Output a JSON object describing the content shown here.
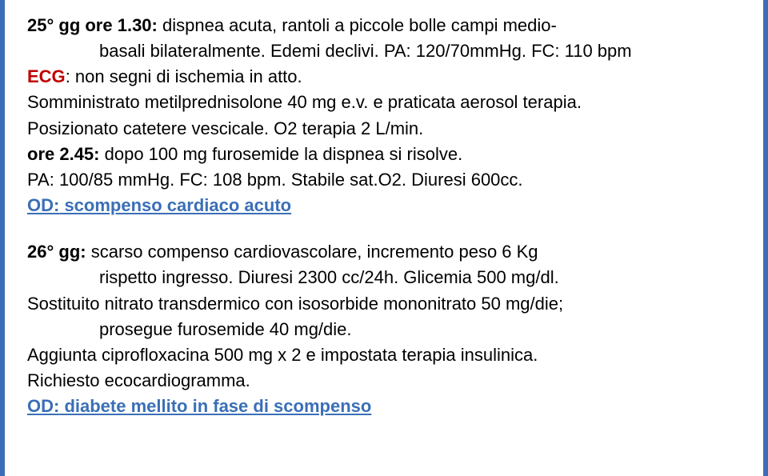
{
  "text_color": "#000000",
  "accent_color": "#3a6fb7",
  "red_color": "#c00000",
  "background_color": "#ffffff",
  "font_size_pt": 22,
  "p1a": "25° gg ore 1.30: ",
  "p1b": "dispnea acuta, rantoli a piccole bolle campi medio-",
  "p1c": "basali bilateralmente. Edemi declivi. PA: 120/70mmHg. FC: 110 bpm",
  "p2a": "ECG",
  "p2b": ": non segni di ischemia in atto.",
  "p3": "Somministrato metilprednisolone 40 mg e.v. e praticata aerosol terapia.",
  "p4": "Posizionato catetere vescicale. O2 terapia 2 L/min.",
  "p5a": "ore 2.45:",
  "p5b": " dopo 100 mg furosemide la dispnea si risolve.",
  "p6": "PA: 100/85 mmHg. FC: 108 bpm. Stabile sat.O2. Diuresi 600cc.",
  "p7a": "OD:",
  "p7b": " scompenso cardiaco acuto",
  "p8a": "26° gg: ",
  "p8b": "scarso compenso cardiovascolare, incremento peso 6 Kg",
  "p8c": "rispetto ingresso. Diuresi 2300 cc/24h. Glicemia 500 mg/dl.",
  "p9": "Sostituito nitrato transdermico con isosorbide mononitrato 50 mg/die;",
  "p9b": "prosegue furosemide 40 mg/die.",
  "p10": "Aggiunta ciprofloxacina 500 mg x 2 e impostata terapia insulinica.",
  "p11": "Richiesto ecocardiogramma.",
  "p12a": "OD:",
  "p12b": " diabete mellito in fase di scompenso"
}
